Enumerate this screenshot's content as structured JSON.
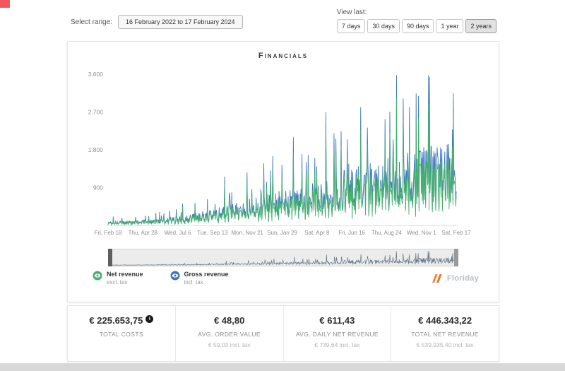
{
  "controls": {
    "select_range_label": "Select range:",
    "date_range_value": "16 February 2022 to 17 February 2024",
    "view_last_label": "View last:",
    "view_buttons": [
      {
        "label": "7 days",
        "selected": false
      },
      {
        "label": "30 days",
        "selected": false
      },
      {
        "label": "90 days",
        "selected": false
      },
      {
        "label": "1 year",
        "selected": false
      },
      {
        "label": "2 years",
        "selected": true
      }
    ]
  },
  "chart_data": {
    "type": "line",
    "title": "Financials",
    "xlabel": "",
    "ylabel": "",
    "ylim": [
      0,
      3800
    ],
    "grid": false,
    "legend_position": "bottom-left",
    "x_tick_labels": [
      "Fri, Feb 18",
      "Thu, Apr 28",
      "Wed, Jul 6",
      "Tue, Sep 13",
      "Mon, Nov 21",
      "Sun, Jan 29",
      "Sat, Apr 8",
      "Fri, Jun 16",
      "Thu, Aug 24",
      "Wed, Nov 1",
      "Sat, Feb 17"
    ],
    "y_ticks": [
      {
        "label": "3.600",
        "value": 3600
      },
      {
        "label": "2.700",
        "value": 2700
      },
      {
        "label": "1.800",
        "value": 1800
      },
      {
        "label": "900",
        "value": 900
      }
    ],
    "num_days": 730,
    "series": [
      {
        "name": "Gross revenue",
        "sub": "incl. tax",
        "color": "#3d76c0"
      },
      {
        "name": "Net revenue",
        "sub": "excl. tax",
        "color": "#46b06e"
      }
    ],
    "trend_envelope": {
      "comment": "approximate daily gross-revenue baseline read from chart; noisy daily spikes rise from ~100 in Feb 2022 to peaks of ~3.600 in late 2023 / early 2024",
      "days": [
        0,
        60,
        120,
        180,
        240,
        300,
        360,
        420,
        480,
        510,
        560,
        620,
        680,
        715,
        730
      ],
      "gross_base": [
        90,
        110,
        150,
        260,
        420,
        600,
        750,
        900,
        1150,
        1300,
        1400,
        1600,
        1750,
        1800,
        1500
      ]
    },
    "net_to_gross_ratio": 0.826
  },
  "legend": [
    {
      "name": "Net revenue",
      "sub": "excl. tax",
      "color": "#46b06e"
    },
    {
      "name": "Gross revenue",
      "sub": "incl. tax",
      "color": "#3d76c0"
    }
  ],
  "logo": {
    "text": "Floriday",
    "mark_colors": [
      "#f58532",
      "#f26d21"
    ]
  },
  "stats": [
    {
      "value": "€ 225.653,75",
      "label": "TOTAL COSTS",
      "sub": "",
      "info": true
    },
    {
      "value": "€ 48,80",
      "label": "AVG. ORDER VALUE",
      "sub": "€ 59,03 incl. tax",
      "info": false
    },
    {
      "value": "€ 611,43",
      "label": "AVG. DAILY NET REVENUE",
      "sub": "€ 739,64 incl. tax",
      "info": false
    },
    {
      "value": "€ 446.343,22",
      "label": "TOTAL NET REVENUE",
      "sub": "€ 539.935,40 incl. tax",
      "info": false
    }
  ]
}
